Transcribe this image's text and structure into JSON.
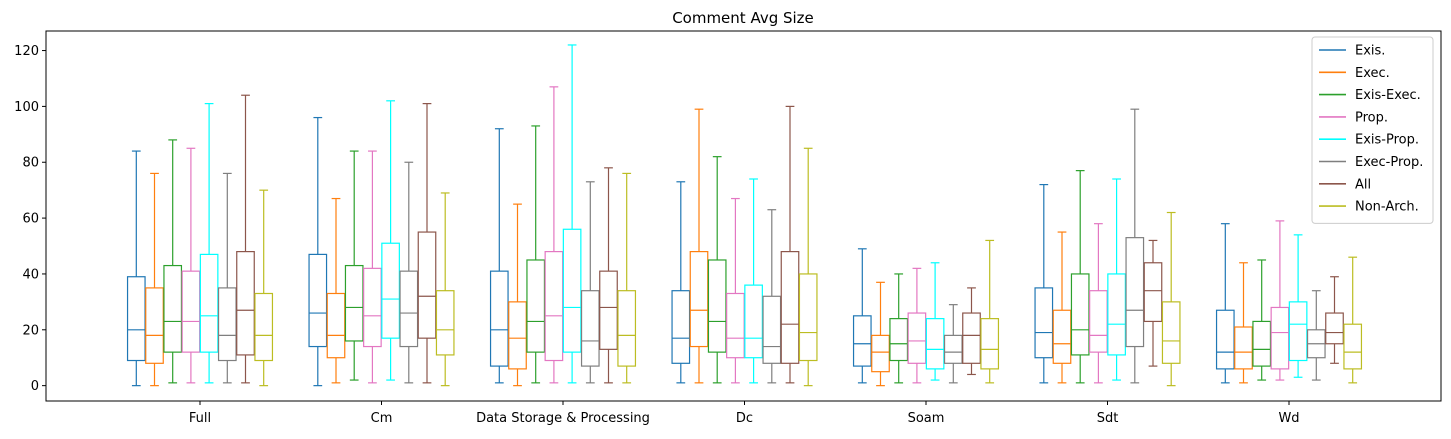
{
  "chart_data": {
    "type": "box",
    "title": "Comment Avg Size",
    "xlabel": "",
    "ylabel": "",
    "ylim": [
      -5.5,
      127
    ],
    "yticks": [
      0,
      20,
      40,
      60,
      80,
      100,
      120
    ],
    "grid": false,
    "legend_position": "top-right",
    "categories": [
      "Full",
      "Cm",
      "Data Storage & Processing",
      "Dc",
      "Soam",
      "Sdt",
      "Wd"
    ],
    "series": [
      {
        "name": "Exis.",
        "color": "#1f77b4",
        "boxes": [
          {
            "min": 0,
            "q1": 9,
            "median": 20,
            "q3": 39,
            "max": 84
          },
          {
            "min": 0,
            "q1": 14,
            "median": 26,
            "q3": 47,
            "max": 96
          },
          {
            "min": 1,
            "q1": 7,
            "median": 20,
            "q3": 41,
            "max": 92
          },
          {
            "min": 1,
            "q1": 8,
            "median": 17,
            "q3": 34,
            "max": 73
          },
          {
            "min": 1,
            "q1": 7,
            "median": 15,
            "q3": 25,
            "max": 49
          },
          {
            "min": 1,
            "q1": 10,
            "median": 19,
            "q3": 35,
            "max": 72
          },
          {
            "min": 1,
            "q1": 6,
            "median": 12,
            "q3": 27,
            "max": 58
          }
        ]
      },
      {
        "name": "Exec.",
        "color": "#ff7f0e",
        "boxes": [
          {
            "min": 0,
            "q1": 8,
            "median": 18,
            "q3": 35,
            "max": 76
          },
          {
            "min": 1,
            "q1": 10,
            "median": 18,
            "q3": 33,
            "max": 67
          },
          {
            "min": 0,
            "q1": 6,
            "median": 17,
            "q3": 30,
            "max": 65
          },
          {
            "min": 1,
            "q1": 14,
            "median": 27,
            "q3": 48,
            "max": 99
          },
          {
            "min": 0,
            "q1": 5,
            "median": 12,
            "q3": 18,
            "max": 37
          },
          {
            "min": 1,
            "q1": 8,
            "median": 15,
            "q3": 27,
            "max": 55
          },
          {
            "min": 1,
            "q1": 6,
            "median": 12,
            "q3": 21,
            "max": 44
          }
        ]
      },
      {
        "name": "Exis-Exec.",
        "color": "#2ca02c",
        "boxes": [
          {
            "min": 1,
            "q1": 12,
            "median": 23,
            "q3": 43,
            "max": 88
          },
          {
            "min": 2,
            "q1": 16,
            "median": 28,
            "q3": 43,
            "max": 84
          },
          {
            "min": 1,
            "q1": 12,
            "median": 23,
            "q3": 45,
            "max": 93
          },
          {
            "min": 1,
            "q1": 12,
            "median": 23,
            "q3": 45,
            "max": 82
          },
          {
            "min": 1,
            "q1": 9,
            "median": 15,
            "q3": 24,
            "max": 40
          },
          {
            "min": 1,
            "q1": 11,
            "median": 20,
            "q3": 40,
            "max": 77
          },
          {
            "min": 2,
            "q1": 7,
            "median": 13,
            "q3": 23,
            "max": 45
          }
        ]
      },
      {
        "name": "Prop.",
        "color": "#e377c2",
        "boxes": [
          {
            "min": 1,
            "q1": 12,
            "median": 23,
            "q3": 41,
            "max": 85
          },
          {
            "min": 1,
            "q1": 14,
            "median": 25,
            "q3": 42,
            "max": 84
          },
          {
            "min": 1,
            "q1": 9,
            "median": 25,
            "q3": 48,
            "max": 107
          },
          {
            "min": 1,
            "q1": 10,
            "median": 17,
            "q3": 33,
            "max": 67
          },
          {
            "min": 1,
            "q1": 8,
            "median": 16,
            "q3": 26,
            "max": 42
          },
          {
            "min": 1,
            "q1": 12,
            "median": 18,
            "q3": 34,
            "max": 58
          },
          {
            "min": 2,
            "q1": 6,
            "median": 19,
            "q3": 28,
            "max": 59
          }
        ]
      },
      {
        "name": "Exis-Prop.",
        "color": "#00ffff",
        "boxes": [
          {
            "min": 1,
            "q1": 12,
            "median": 25,
            "q3": 47,
            "max": 101
          },
          {
            "min": 2,
            "q1": 17,
            "median": 31,
            "q3": 51,
            "max": 102
          },
          {
            "min": 1,
            "q1": 12,
            "median": 28,
            "q3": 56,
            "max": 122
          },
          {
            "min": 1,
            "q1": 10,
            "median": 17,
            "q3": 36,
            "max": 74
          },
          {
            "min": 2,
            "q1": 6,
            "median": 13,
            "q3": 24,
            "max": 44
          },
          {
            "min": 2,
            "q1": 11,
            "median": 22,
            "q3": 40,
            "max": 74
          },
          {
            "min": 3,
            "q1": 9,
            "median": 22,
            "q3": 30,
            "max": 54
          }
        ]
      },
      {
        "name": "Exec-Prop.",
        "color": "#7f7f7f",
        "boxes": [
          {
            "min": 1,
            "q1": 9,
            "median": 18,
            "q3": 35,
            "max": 76
          },
          {
            "min": 1,
            "q1": 14,
            "median": 26,
            "q3": 41,
            "max": 80
          },
          {
            "min": 1,
            "q1": 7,
            "median": 16,
            "q3": 34,
            "max": 73
          },
          {
            "min": 1,
            "q1": 8,
            "median": 14,
            "q3": 32,
            "max": 63
          },
          {
            "min": 1,
            "q1": 8,
            "median": 12,
            "q3": 18,
            "max": 29
          },
          {
            "min": 1,
            "q1": 14,
            "median": 27,
            "q3": 53,
            "max": 99
          },
          {
            "min": 2,
            "q1": 10,
            "median": 15,
            "q3": 20,
            "max": 34
          }
        ]
      },
      {
        "name": "All",
        "color": "#8c564b",
        "boxes": [
          {
            "min": 1,
            "q1": 11,
            "median": 27,
            "q3": 48,
            "max": 104
          },
          {
            "min": 1,
            "q1": 17,
            "median": 32,
            "q3": 55,
            "max": 101
          },
          {
            "min": 1,
            "q1": 13,
            "median": 28,
            "q3": 41,
            "max": 78
          },
          {
            "min": 1,
            "q1": 8,
            "median": 22,
            "q3": 48,
            "max": 100
          },
          {
            "min": 4,
            "q1": 8,
            "median": 18,
            "q3": 26,
            "max": 35
          },
          {
            "min": 7,
            "q1": 23,
            "median": 34,
            "q3": 44,
            "max": 52
          },
          {
            "min": 8,
            "q1": 15,
            "median": 19,
            "q3": 26,
            "max": 39
          }
        ]
      },
      {
        "name": "Non-Arch.",
        "color": "#bcbd22",
        "boxes": [
          {
            "min": 0,
            "q1": 9,
            "median": 18,
            "q3": 33,
            "max": 70
          },
          {
            "min": 0,
            "q1": 11,
            "median": 20,
            "q3": 34,
            "max": 69
          },
          {
            "min": 1,
            "q1": 7,
            "median": 18,
            "q3": 34,
            "max": 76
          },
          {
            "min": 0,
            "q1": 9,
            "median": 19,
            "q3": 40,
            "max": 85
          },
          {
            "min": 1,
            "q1": 6,
            "median": 13,
            "q3": 24,
            "max": 52
          },
          {
            "min": 0,
            "q1": 8,
            "median": 16,
            "q3": 30,
            "max": 62
          },
          {
            "min": 1,
            "q1": 6,
            "median": 12,
            "q3": 22,
            "max": 46
          }
        ]
      }
    ]
  }
}
